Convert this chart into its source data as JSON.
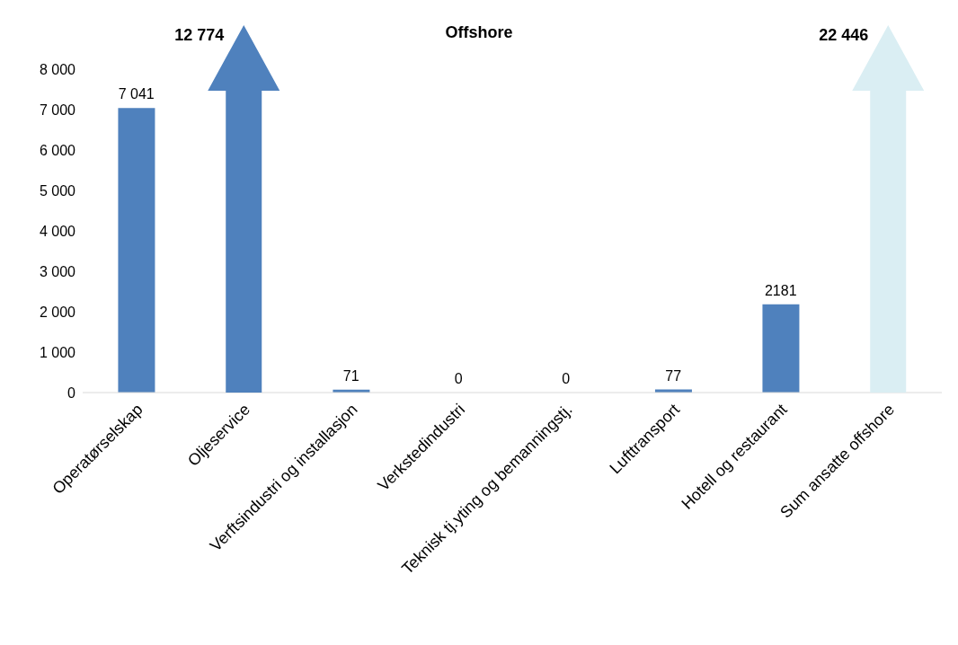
{
  "chart_data": {
    "type": "bar",
    "title": "Offshore",
    "categories": [
      "Operatørselskap",
      "Oljeservice",
      "Verftsindustri og installasjon",
      "Verkstedindustri",
      "Teknisk tj.yting og bemanningstj.",
      "Lufttransport",
      "Hotell og restaurant",
      "Sum ansatte offshore"
    ],
    "values": [
      7041,
      null,
      71,
      0,
      0,
      77,
      2181,
      null
    ],
    "value_labels": [
      "7 041",
      null,
      "71",
      "0",
      "0",
      "77",
      "2181",
      null
    ],
    "colors": [
      "#4f81bd",
      "#4f81bd",
      "#4f81bd",
      "#4f81bd",
      "#4f81bd",
      "#4f81bd",
      "#4f81bd",
      "#daeef3"
    ],
    "annotations": [
      "12 774",
      "22 446"
    ],
    "ylim": [
      0,
      8000
    ],
    "yticks": [
      {
        "value": 0,
        "label": "0"
      },
      {
        "value": 1000,
        "label": "1 000"
      },
      {
        "value": 2000,
        "label": "2 000"
      },
      {
        "value": 3000,
        "label": "3 000"
      },
      {
        "value": 4000,
        "label": "4 000"
      },
      {
        "value": 5000,
        "label": "5 000"
      },
      {
        "value": 6000,
        "label": "6 000"
      },
      {
        "value": 7000,
        "label": "7 000"
      },
      {
        "value": 8000,
        "label": "8 000"
      }
    ],
    "grid": false,
    "legend": false
  }
}
